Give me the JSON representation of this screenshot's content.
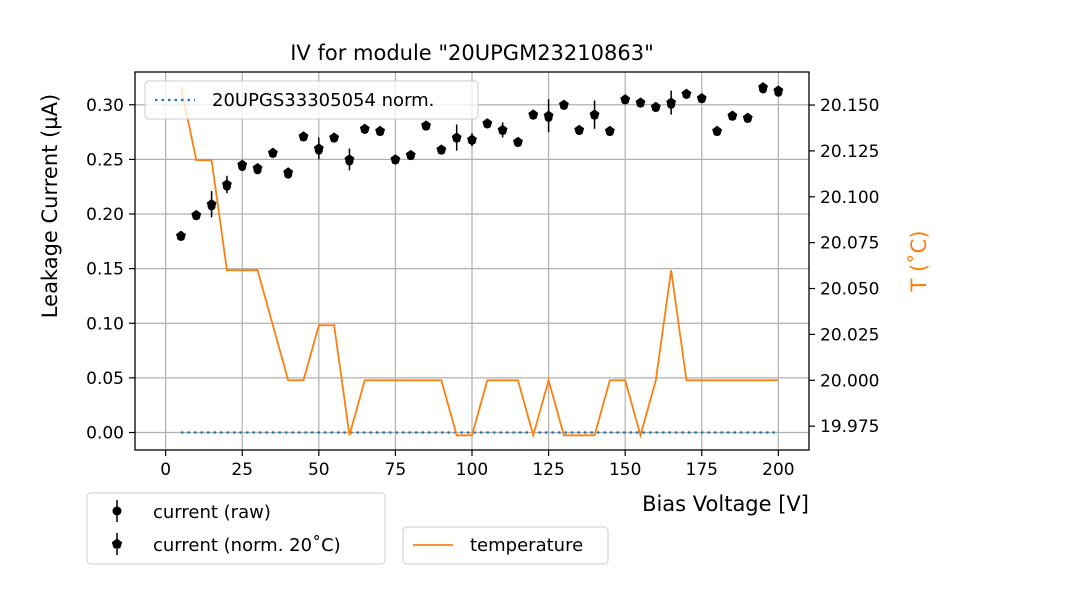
{
  "chart_data": {
    "type": "line",
    "title": "IV for module \"20UPGM23210863\"",
    "xlabel": "Bias Voltage [V]",
    "ylabel": "Leakage Current (µA)",
    "y2label": "T ($^\\circ$C)",
    "y2label_display": "T (˚C)",
    "xlim": [
      -10,
      210
    ],
    "ylim": [
      -0.016,
      0.33
    ],
    "y2lim": [
      19.962,
      20.168
    ],
    "x_ticks": [
      0,
      25,
      50,
      75,
      100,
      125,
      150,
      175,
      200
    ],
    "y_ticks": [
      0.0,
      0.05,
      0.1,
      0.15,
      0.2,
      0.25,
      0.3
    ],
    "y_tick_labels": [
      "0.00",
      "0.05",
      "0.10",
      "0.15",
      "0.20",
      "0.25",
      "0.30"
    ],
    "y2_ticks": [
      19.975,
      20.0,
      20.025,
      20.05,
      20.075,
      20.1,
      20.125,
      20.15
    ],
    "y2_tick_labels": [
      "19.975",
      "20.000",
      "20.025",
      "20.050",
      "20.075",
      "20.100",
      "20.125",
      "20.150"
    ],
    "grid": true,
    "voltages": [
      5,
      10,
      15,
      20,
      25,
      30,
      35,
      40,
      45,
      50,
      55,
      60,
      65,
      70,
      75,
      80,
      85,
      90,
      95,
      100,
      105,
      110,
      115,
      120,
      125,
      130,
      135,
      140,
      145,
      150,
      155,
      160,
      165,
      170,
      175,
      180,
      185,
      190,
      195,
      200
    ],
    "series": [
      {
        "name": "current (raw)",
        "marker": "circle",
        "color": "#000000",
        "axis": "left",
        "values": [
          0.179,
          0.198,
          0.207,
          0.225,
          0.243,
          0.24,
          0.255,
          0.236,
          0.27,
          0.258,
          0.269,
          0.248,
          0.277,
          0.275,
          0.249,
          0.253,
          0.28,
          0.258,
          0.269,
          0.267,
          0.282,
          0.276,
          0.265,
          0.29,
          0.288,
          0.299,
          0.276,
          0.29,
          0.275,
          0.304,
          0.301,
          0.297,
          0.3,
          0.309,
          0.305,
          0.275,
          0.289,
          0.287,
          0.314,
          0.311
        ]
      },
      {
        "name": "current (norm. 20˚C)",
        "marker": "pentagon",
        "color": "#000000",
        "axis": "left",
        "values": [
          0.18,
          0.199,
          0.209,
          0.227,
          0.245,
          0.242,
          0.256,
          0.238,
          0.271,
          0.26,
          0.27,
          0.25,
          0.278,
          0.276,
          0.25,
          0.254,
          0.281,
          0.259,
          0.27,
          0.268,
          0.283,
          0.277,
          0.266,
          0.291,
          0.29,
          0.3,
          0.277,
          0.291,
          0.276,
          0.305,
          0.302,
          0.298,
          0.302,
          0.31,
          0.306,
          0.276,
          0.29,
          0.288,
          0.316,
          0.313
        ],
        "errors": [
          0.003,
          0.004,
          0.012,
          0.008,
          0.004,
          0.004,
          0.004,
          0.004,
          0.004,
          0.01,
          0.004,
          0.01,
          0.004,
          0.004,
          0.004,
          0.004,
          0.004,
          0.004,
          0.012,
          0.006,
          0.004,
          0.007,
          0.004,
          0.004,
          0.015,
          0.004,
          0.004,
          0.013,
          0.004,
          0.004,
          0.004,
          0.004,
          0.011,
          0.004,
          0.004,
          0.004,
          0.004,
          0.004,
          0.004,
          0.004
        ]
      },
      {
        "name": "20UPGS33305054 norm.",
        "marker": "dotted-line",
        "color": "#1f77b4",
        "axis": "left",
        "values": [
          0,
          0,
          0,
          0,
          0,
          0,
          0,
          0,
          0,
          0,
          0,
          0,
          0,
          0,
          0,
          0,
          0,
          0,
          0,
          0,
          0,
          0,
          0,
          0,
          0,
          0,
          0,
          0,
          0,
          0,
          0,
          0,
          0,
          0,
          0,
          0,
          0,
          0,
          0,
          0
        ]
      },
      {
        "name": "temperature",
        "marker": "line",
        "color": "#ff7f0e",
        "axis": "right",
        "values": [
          20.16,
          20.12,
          20.12,
          20.06,
          20.06,
          20.06,
          20.03,
          20.0,
          20.0,
          20.03,
          20.03,
          19.97,
          20.0,
          20.0,
          20.0,
          20.0,
          20.0,
          20.0,
          19.97,
          19.97,
          20.0,
          20.0,
          20.0,
          19.97,
          20.0,
          19.97,
          19.97,
          19.97,
          20.0,
          20.0,
          19.97,
          20.0,
          20.06,
          20.0,
          20.0,
          20.0,
          20.0,
          20.0,
          20.0,
          20.0
        ]
      }
    ],
    "legends": {
      "inner": {
        "placement": "top-left",
        "entries": [
          "20UPGS33305054 norm."
        ]
      },
      "bottom_left": {
        "placement": "below-left",
        "entries": [
          "current (raw)",
          "current (norm. 20˚C)"
        ]
      },
      "bottom_center": {
        "placement": "below-center",
        "entries": [
          "temperature"
        ]
      }
    }
  }
}
